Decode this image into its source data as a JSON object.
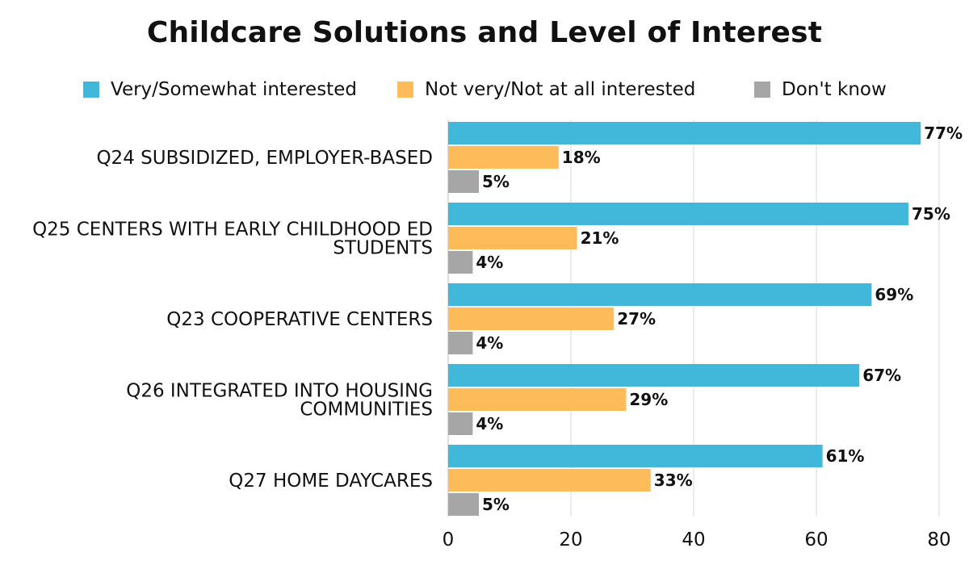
{
  "chart_data": {
    "type": "bar",
    "orientation": "horizontal",
    "title": "Childcare Solutions and Level of Interest",
    "categories": [
      [
        "Q24 SUBSIDIZED, EMPLOYER-BASED"
      ],
      [
        "Q25 CENTERS WITH EARLY CHILDHOOD ED",
        "STUDENTS"
      ],
      [
        "Q23 COOPERATIVE CENTERS"
      ],
      [
        "Q26 INTEGRATED INTO HOUSING",
        "COMMUNITIES"
      ],
      [
        "Q27 HOME DAYCARES"
      ]
    ],
    "series": [
      {
        "name": "Very/Somewhat interested",
        "color": "#41B8D9",
        "values": [
          77,
          75,
          69,
          67,
          61
        ],
        "labels": [
          "77%",
          "75%",
          "69%",
          "67%",
          "61%"
        ]
      },
      {
        "name": "Not very/Not at all interested",
        "color": "#FDBB5A",
        "values": [
          18,
          21,
          27,
          29,
          33
        ],
        "labels": [
          "18%",
          "21%",
          "27%",
          "29%",
          "33%"
        ]
      },
      {
        "name": "Don't know",
        "color": "#A6A6A6",
        "values": [
          5,
          4,
          4,
          4,
          5
        ],
        "labels": [
          "5%",
          "4%",
          "4%",
          "4%",
          "5%"
        ]
      }
    ],
    "xlim": [
      0,
      80
    ],
    "xticks": [
      "0",
      "20",
      "40",
      "60",
      "80"
    ],
    "xtick_values": [
      0,
      20,
      40,
      60,
      80
    ],
    "grid": true,
    "legend_position": "top"
  }
}
